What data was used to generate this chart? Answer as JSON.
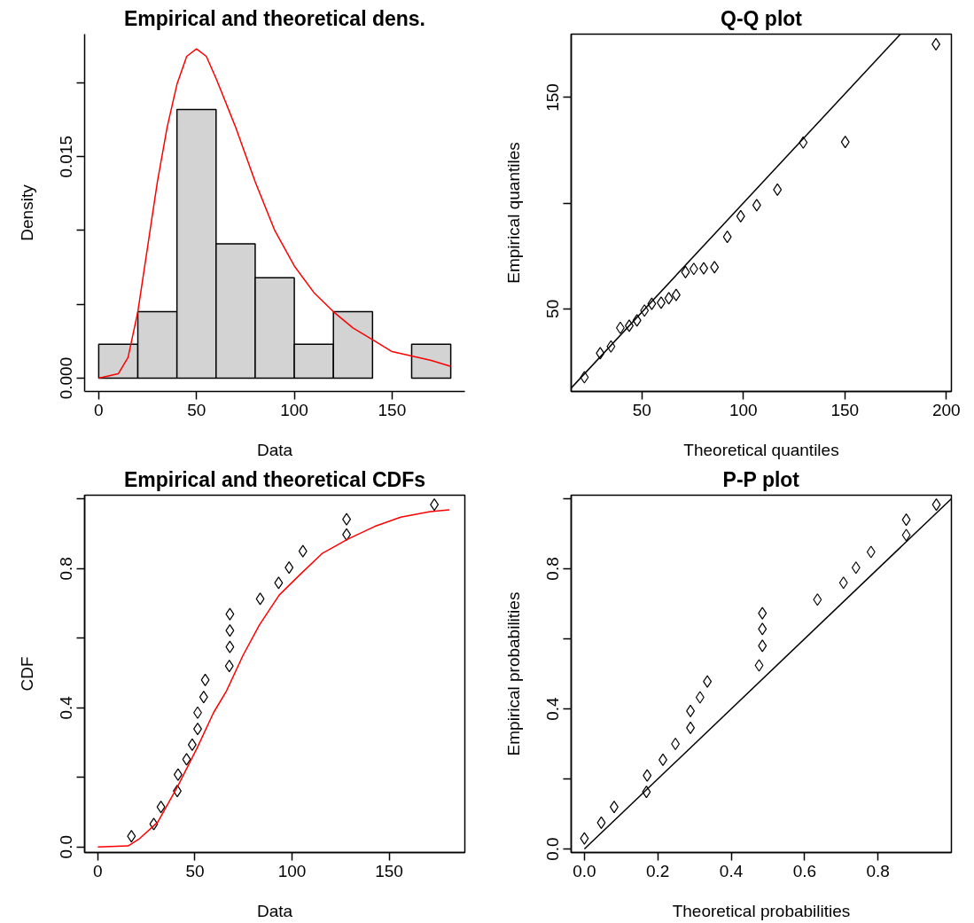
{
  "chart_data": [
    {
      "type": "histogram",
      "title": "Empirical and theoretical dens.",
      "xlabel": "Data",
      "ylabel": "Density",
      "xlim": [
        -7.2,
        187.2
      ],
      "ylim": [
        -0.0009,
        0.0233
      ],
      "xticks": [
        0,
        50,
        100,
        150
      ],
      "yticks": [
        {
          "value": 0,
          "label": "0.000"
        },
        {
          "value": 0.005,
          "label": null
        },
        {
          "value": 0.01,
          "label": null
        },
        {
          "value": 0.015,
          "label": "0.015"
        },
        {
          "value": 0.02,
          "label": null
        }
      ],
      "grid": false,
      "series": [
        {
          "type": "histogram",
          "color": "#d3d3d3",
          "bins": [
            0,
            20,
            40,
            60,
            80,
            100,
            120,
            140,
            160,
            180
          ],
          "values": [
            0.0023,
            0.0045,
            0.0182,
            0.0091,
            0.0068,
            0.0023,
            0.0045,
            0,
            0.0023
          ]
        },
        {
          "type": "line",
          "color": "#ff0000",
          "x": [
            0,
            10,
            15,
            20,
            25,
            30,
            35,
            40,
            45,
            50,
            55,
            60,
            70,
            80,
            90,
            100,
            110,
            120,
            130,
            140,
            150,
            160,
            170,
            180
          ],
          "values": [
            0,
            0.0003,
            0.0014,
            0.0045,
            0.0089,
            0.0133,
            0.017,
            0.0199,
            0.0218,
            0.0223,
            0.0218,
            0.0203,
            0.017,
            0.0133,
            0.01,
            0.0076,
            0.0058,
            0.0045,
            0.0034,
            0.0026,
            0.0018,
            0.0015,
            0.0012,
            0.0008
          ]
        }
      ]
    },
    {
      "type": "scatter",
      "title": "Q-Q plot",
      "xlabel": "Theoretical quantiles",
      "ylabel": "Empirical quantiles",
      "xlim": [
        15.2,
        202.5
      ],
      "ylim": [
        10.9,
        180
      ],
      "xticks": [
        50,
        100,
        150,
        200
      ],
      "yticks": [
        50,
        {
          "value": 100,
          "label": null
        },
        150
      ],
      "grid": false,
      "series": [
        {
          "type": "scatter",
          "marker": "diamond",
          "color": "#000000",
          "x": [
            21.7,
            29.5,
            34.8,
            39.4,
            43.8,
            47.6,
            51.3,
            54.9,
            59.5,
            63.3,
            66.9,
            71.5,
            75.6,
            80.5,
            85.8,
            92.1,
            98.7,
            106.6,
            116.8,
            129.5,
            150.2,
            194.9
          ],
          "values": [
            17.6,
            29,
            32.2,
            41,
            42,
            44.5,
            49.2,
            52.4,
            52.9,
            55,
            56.6,
            67.4,
            68.9,
            69.2,
            69.7,
            84.1,
            93.8,
            99.1,
            106.4,
            128.7,
            129,
            175.2
          ]
        },
        {
          "type": "line",
          "color": "#000000",
          "x": [
            15.2,
            177.4
          ],
          "values": [
            12.5,
            180
          ]
        }
      ]
    },
    {
      "type": "scatter",
      "title": "Empirical and theoretical CDFs",
      "xlabel": "Data",
      "ylabel": "CDF",
      "xlim": [
        -6.8,
        189
      ],
      "ylim": [
        -0.016,
        1.011
      ],
      "xticks": [
        0,
        50,
        100,
        150
      ],
      "yticks": [
        {
          "value": 0,
          "label": "0.0"
        },
        {
          "value": 0.2,
          "label": null
        },
        {
          "value": 0.4,
          "label": "0.4"
        },
        {
          "value": 0.6,
          "label": null
        },
        {
          "value": 0.8,
          "label": "0.8"
        },
        {
          "value": 1.0,
          "label": null
        }
      ],
      "grid": false,
      "series": [
        {
          "type": "scatter",
          "marker": "diamond",
          "color": "#000000",
          "x": [
            17.3,
            28.8,
            32.5,
            40.9,
            41.3,
            45.7,
            48.6,
            51.4,
            51.4,
            54.5,
            55.3,
            67.7,
            68,
            68,
            68,
            83.6,
            93.1,
            98.5,
            105.6,
            128.1,
            128.1,
            173.3
          ],
          "values": [
            0.031,
            0.066,
            0.115,
            0.161,
            0.208,
            0.252,
            0.294,
            0.339,
            0.386,
            0.431,
            0.48,
            0.52,
            0.575,
            0.622,
            0.669,
            0.713,
            0.759,
            0.803,
            0.85,
            0.898,
            0.942,
            0.984
          ]
        },
        {
          "type": "line",
          "color": "#ff0000",
          "x": [
            0,
            15.6,
            21.5,
            30.8,
            41,
            51,
            59.6,
            66.3,
            74.8,
            83.2,
            93.4,
            103.6,
            115.4,
            128.9,
            142.5,
            156,
            171.2,
            181
          ],
          "values": [
            0,
            0.003,
            0.024,
            0.071,
            0.173,
            0.283,
            0.386,
            0.449,
            0.551,
            0.638,
            0.724,
            0.78,
            0.843,
            0.885,
            0.921,
            0.948,
            0.964,
            0.969
          ]
        }
      ]
    },
    {
      "type": "scatter",
      "title": "P-P plot",
      "xlabel": "Theoretical probabilities",
      "ylabel": "Empirical probabilities",
      "xlim": [
        -0.036,
        1.0
      ],
      "ylim": [
        -0.01,
        1.01
      ],
      "xticks": [
        {
          "value": 0,
          "label": "0.0"
        },
        0.2,
        0.4,
        0.6,
        0.8
      ],
      "yticks": [
        {
          "value": 0,
          "label": "0.0"
        },
        {
          "value": 0.2,
          "label": null
        },
        {
          "value": 0.4,
          "label": "0.4"
        },
        {
          "value": 0.6,
          "label": null
        },
        {
          "value": 0.8,
          "label": "0.8"
        },
        {
          "value": 1.0,
          "label": null
        }
      ],
      "grid": false,
      "series": [
        {
          "type": "scatter",
          "marker": "diamond",
          "color": "#000000",
          "x": [
            0,
            0.046,
            0.081,
            0.169,
            0.171,
            0.214,
            0.248,
            0.289,
            0.289,
            0.315,
            0.335,
            0.476,
            0.485,
            0.485,
            0.485,
            0.635,
            0.706,
            0.74,
            0.781,
            0.877,
            0.877,
            0.959
          ],
          "values": [
            0.03,
            0.075,
            0.12,
            0.163,
            0.21,
            0.255,
            0.3,
            0.346,
            0.394,
            0.433,
            0.478,
            0.524,
            0.58,
            0.628,
            0.673,
            0.712,
            0.76,
            0.803,
            0.848,
            0.896,
            0.94,
            0.983
          ]
        },
        {
          "type": "line",
          "color": "#000000",
          "x": [
            0,
            1
          ],
          "values": [
            0,
            1
          ]
        }
      ]
    }
  ]
}
